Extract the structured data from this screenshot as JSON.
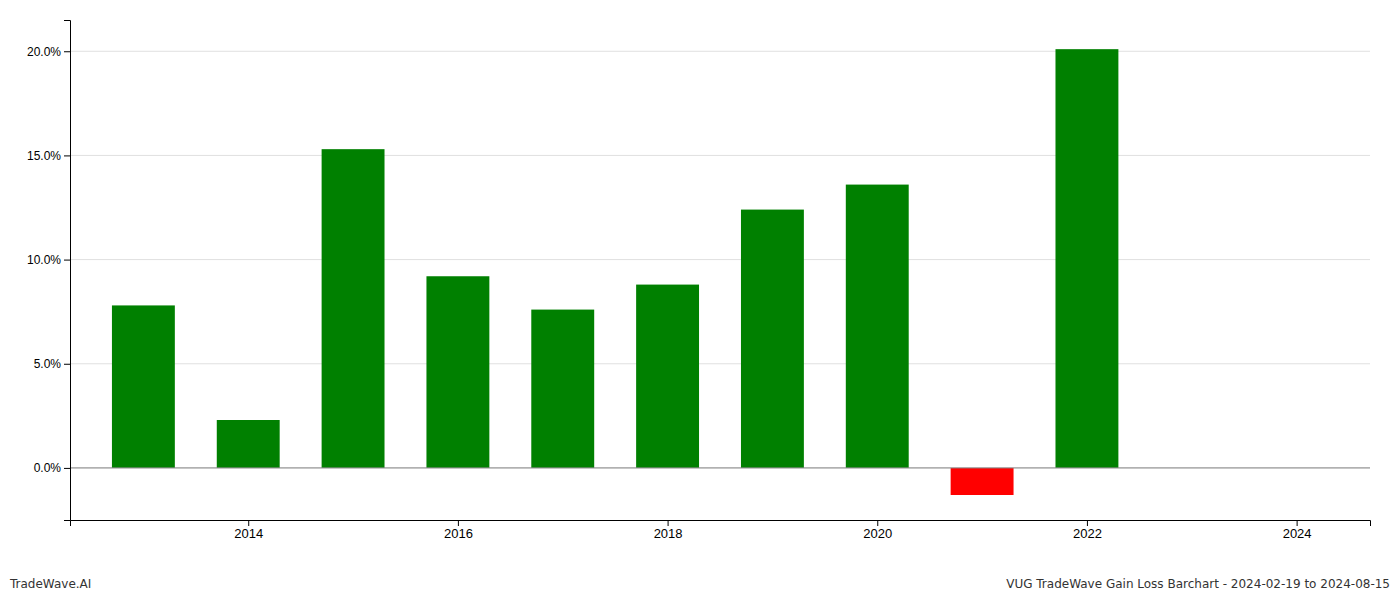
{
  "chart_data": {
    "type": "bar",
    "x": [
      2013,
      2014,
      2015,
      2016,
      2017,
      2018,
      2019,
      2020,
      2021,
      2022,
      2023
    ],
    "values": [
      0.078,
      0.023,
      0.153,
      0.092,
      0.076,
      0.088,
      0.124,
      0.136,
      -0.013,
      0.201,
      0.0
    ],
    "colors": [
      "#008000",
      "#008000",
      "#008000",
      "#008000",
      "#008000",
      "#008000",
      "#008000",
      "#008000",
      "#ff0000",
      "#008000",
      "#008000"
    ],
    "xlim": [
      2012.3,
      2024.7
    ],
    "xticks": [
      2014,
      2016,
      2018,
      2020,
      2022,
      2024
    ],
    "ylim": [
      -0.025,
      0.215
    ],
    "yticks": [
      {
        "value": 0.0,
        "label": "0.0%"
      },
      {
        "value": 0.05,
        "label": "5.0%"
      },
      {
        "value": 0.1,
        "label": "10.0%"
      },
      {
        "value": 0.15,
        "label": "15.0%"
      },
      {
        "value": 0.2,
        "label": "20.0%"
      }
    ],
    "grid": true,
    "annotations": [
      "TradeWave.AI",
      "VUG TradeWave Gain Loss Barchart - 2024-02-19 to 2024-08-15"
    ]
  }
}
